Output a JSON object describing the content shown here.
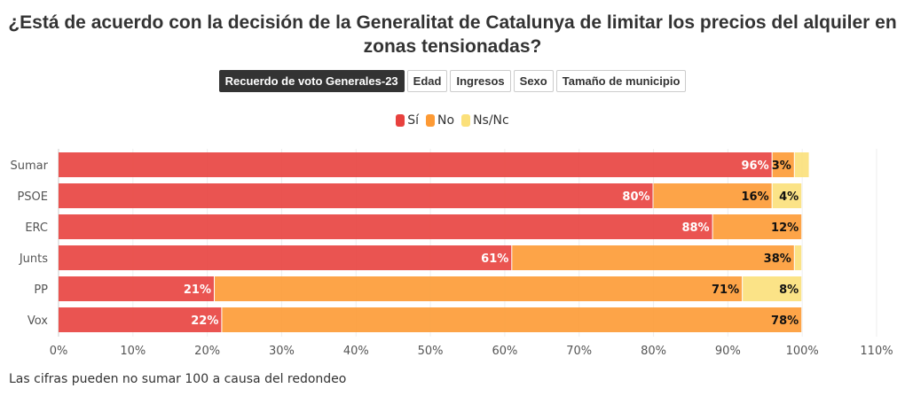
{
  "title": "¿Está de acuerdo con la decisión de la Generalitat de Catalunya de limitar los precios del alquiler en zonas tensionadas?",
  "tabs": [
    {
      "label": "Recuerdo de voto Generales-23",
      "active": true
    },
    {
      "label": "Edad"
    },
    {
      "label": "Ingresos"
    },
    {
      "label": "Sexo"
    },
    {
      "label": "Tamaño de municipio"
    }
  ],
  "note": "Las cifras pueden no sumar 100 a causa del redondeo",
  "chart_data": {
    "type": "bar",
    "orientation": "horizontal",
    "stacked": true,
    "categories": [
      "Sumar",
      "PSOE",
      "ERC",
      "Junts",
      "PP",
      "Vox"
    ],
    "series": [
      {
        "name": "Sí",
        "color": "#e8413e",
        "values": [
          96,
          80,
          88,
          61,
          21,
          22
        ]
      },
      {
        "name": "No",
        "color": "#fd9a34",
        "values": [
          3,
          16,
          12,
          38,
          71,
          78
        ]
      },
      {
        "name": "Ns/Nc",
        "color": "#fbe07a",
        "values": [
          2,
          4,
          0,
          1,
          8,
          0
        ]
      }
    ],
    "xlim": [
      0,
      110
    ],
    "xticks": [
      "0%",
      "10%",
      "20%",
      "30%",
      "40%",
      "50%",
      "60%",
      "70%",
      "80%",
      "90%",
      "100%",
      "110%"
    ],
    "legend": "top",
    "grid": true
  }
}
